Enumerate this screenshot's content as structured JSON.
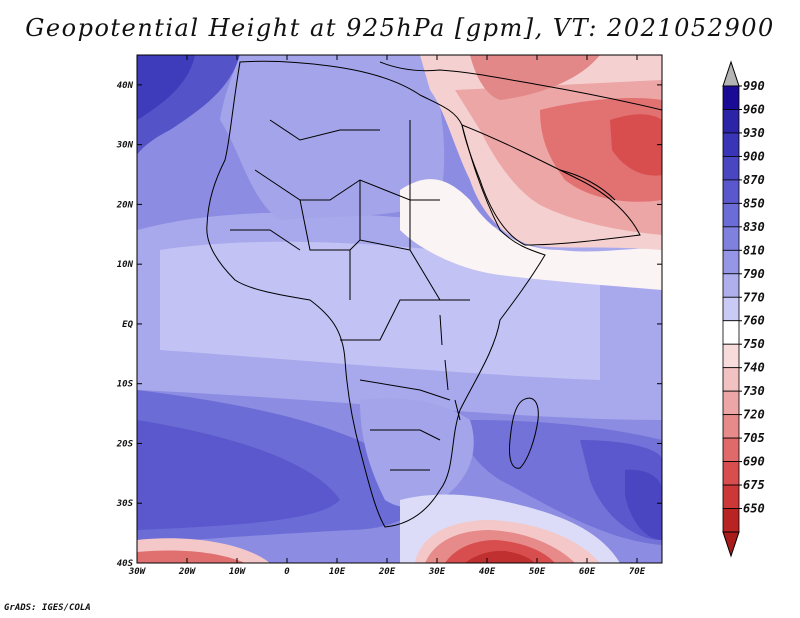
{
  "title": "Geopotential Height at 925hPa [gpm], VT: 2021052900",
  "footer": "GrADS: IGES/COLA",
  "map": {
    "variable": "Geopotential Height",
    "level_hpa": 925,
    "units": "gpm",
    "valid_time": "2021052900",
    "lon_range": [
      -30,
      75
    ],
    "lat_range": [
      -40,
      45
    ],
    "lat_labels": [
      {
        "lat": 40,
        "text": "40N"
      },
      {
        "lat": 30,
        "text": "30N"
      },
      {
        "lat": 20,
        "text": "20N"
      },
      {
        "lat": 10,
        "text": "10N"
      },
      {
        "lat": 0,
        "text": "EQ"
      },
      {
        "lat": -10,
        "text": "10S"
      },
      {
        "lat": -20,
        "text": "20S"
      },
      {
        "lat": -30,
        "text": "30S"
      },
      {
        "lat": -40,
        "text": "40S"
      }
    ],
    "lon_labels": [
      {
        "lon": -30,
        "text": "30W"
      },
      {
        "lon": -20,
        "text": "20W"
      },
      {
        "lon": -10,
        "text": "10W"
      },
      {
        "lon": 0,
        "text": "0"
      },
      {
        "lon": 10,
        "text": "10E"
      },
      {
        "lon": 20,
        "text": "20E"
      },
      {
        "lon": 30,
        "text": "30E"
      },
      {
        "lon": 40,
        "text": "40E"
      },
      {
        "lon": 50,
        "text": "50E"
      },
      {
        "lon": 60,
        "text": "60E"
      },
      {
        "lon": 70,
        "text": "70E"
      }
    ]
  },
  "colorbar": {
    "levels": [
      {
        "label": "990",
        "color": "#1b0a96"
      },
      {
        "label": "960",
        "color": "#2c24a6"
      },
      {
        "label": "930",
        "color": "#3a34b6"
      },
      {
        "label": "900",
        "color": "#4a46c2"
      },
      {
        "label": "870",
        "color": "#5a58cc"
      },
      {
        "label": "850",
        "color": "#6c6cd6"
      },
      {
        "label": "830",
        "color": "#8080de"
      },
      {
        "label": "810",
        "color": "#9696e6"
      },
      {
        "label": "790",
        "color": "#afafee"
      },
      {
        "label": "770",
        "color": "#cacaf6"
      },
      {
        "label": "760",
        "color": "#ffffff"
      },
      {
        "label": "750",
        "color": "#f8dcdc"
      },
      {
        "label": "740",
        "color": "#f2c2c2"
      },
      {
        "label": "730",
        "color": "#eca6a6"
      },
      {
        "label": "720",
        "color": "#e68a8a"
      },
      {
        "label": "705",
        "color": "#e06a6a"
      },
      {
        "label": "690",
        "color": "#d84e4e"
      },
      {
        "label": "675",
        "color": "#cc3838"
      },
      {
        "label": "650",
        "color": "#b82424"
      }
    ],
    "over_color": "#b4b4b4",
    "under_color": "#a81c1c"
  }
}
